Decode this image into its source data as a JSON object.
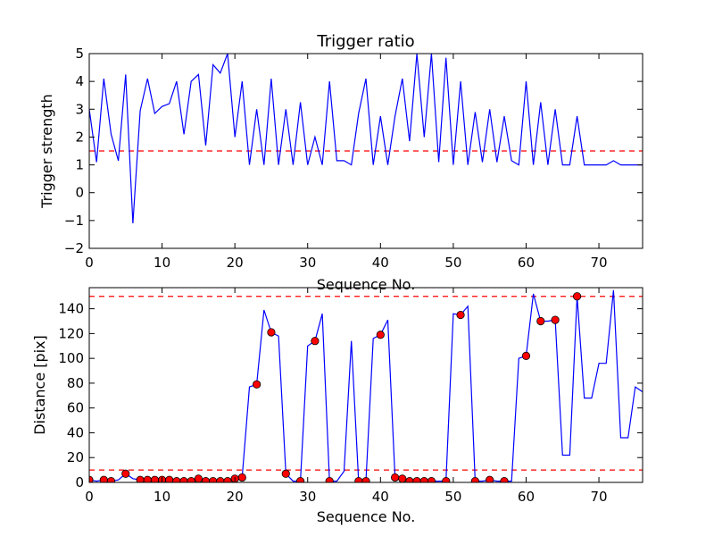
{
  "chart_data": [
    {
      "type": "line",
      "title": "Trigger ratio",
      "xlabel": "Sequence No.",
      "ylabel": "Trigger strength",
      "xlim": [
        0,
        76
      ],
      "ylim": [
        -2,
        5
      ],
      "xticks": [
        0,
        10,
        20,
        30,
        40,
        50,
        60,
        70
      ],
      "yticks": [
        -2,
        -1,
        0,
        1,
        2,
        3,
        4,
        5
      ],
      "xtick_labels": [
        "0",
        "10",
        "20",
        "30",
        "40",
        "50",
        "60",
        "70"
      ],
      "ytick_labels": [
        "−2",
        "−1",
        "0",
        "1",
        "2",
        "3",
        "4",
        "5"
      ],
      "grid": false,
      "series": [
        {
          "color": "#0000ff",
          "x": [
            0,
            1,
            2,
            3,
            4,
            5,
            6,
            7,
            8,
            9,
            10,
            11,
            12,
            13,
            14,
            15,
            16,
            17,
            18,
            19,
            20,
            21,
            22,
            23,
            24,
            25,
            26,
            27,
            28,
            29,
            30,
            31,
            32,
            33,
            34,
            35,
            36,
            37,
            38,
            39,
            40,
            41,
            42,
            43,
            44,
            45,
            46,
            47,
            48,
            49,
            50,
            51,
            52,
            53,
            54,
            55,
            56,
            57,
            58,
            59,
            60,
            61,
            62,
            63,
            64,
            65,
            66,
            67,
            68,
            69,
            70,
            71,
            72,
            73,
            74,
            75,
            76
          ],
          "y": [
            3.0,
            1.1,
            4.1,
            2.1,
            1.15,
            4.25,
            -1.1,
            2.95,
            4.1,
            2.85,
            3.1,
            3.2,
            4.0,
            2.1,
            4.0,
            4.25,
            1.7,
            4.6,
            4.3,
            5.0,
            2.0,
            4.0,
            1.0,
            3.0,
            1.0,
            4.1,
            1.0,
            3.0,
            1.0,
            3.25,
            1.0,
            2.0,
            1.0,
            4.0,
            1.15,
            1.15,
            1.0,
            2.85,
            4.1,
            1.0,
            2.75,
            1.0,
            2.75,
            4.1,
            1.85,
            5.0,
            2.0,
            5.0,
            1.1,
            4.85,
            1.0,
            4.0,
            1.0,
            2.9,
            1.1,
            3.0,
            1.1,
            2.75,
            1.15,
            1.0,
            4.0,
            1.0,
            3.25,
            1.0,
            3.0,
            1.0,
            1.0,
            2.75,
            1.0,
            1.0,
            1.0,
            1.0,
            1.15,
            1.0,
            1.0,
            1.0,
            1.0
          ]
        }
      ],
      "hlines": [
        {
          "y": 1.5,
          "color": "#ff0000",
          "style": "dashed"
        }
      ]
    },
    {
      "type": "line",
      "title": "",
      "xlabel": "Sequence No.",
      "ylabel": "Distance [pix]",
      "xlim": [
        0,
        76
      ],
      "ylim": [
        0,
        157
      ],
      "xticks": [
        0,
        10,
        20,
        30,
        40,
        50,
        60,
        70
      ],
      "yticks": [
        0,
        20,
        40,
        60,
        80,
        100,
        120,
        140
      ],
      "xtick_labels": [
        "0",
        "10",
        "20",
        "30",
        "40",
        "50",
        "60",
        "70"
      ],
      "ytick_labels": [
        "0",
        "20",
        "40",
        "60",
        "80",
        "100",
        "120",
        "140"
      ],
      "grid": false,
      "series": [
        {
          "color": "#0000ff",
          "x": [
            0,
            1,
            2,
            3,
            4,
            5,
            6,
            7,
            8,
            9,
            10,
            11,
            12,
            13,
            14,
            15,
            16,
            17,
            18,
            19,
            20,
            21,
            22,
            23,
            24,
            25,
            26,
            27,
            28,
            29,
            30,
            31,
            32,
            33,
            34,
            35,
            36,
            37,
            38,
            39,
            40,
            41,
            42,
            43,
            44,
            45,
            46,
            47,
            48,
            49,
            50,
            51,
            52,
            53,
            54,
            55,
            56,
            57,
            58,
            59,
            60,
            61,
            62,
            63,
            64,
            65,
            66,
            67,
            68,
            69,
            70,
            71,
            72,
            73,
            74,
            75,
            76
          ],
          "y": [
            2,
            1,
            2,
            1,
            2,
            7,
            3,
            2,
            2,
            2,
            2,
            2,
            1,
            1,
            1,
            3,
            1,
            1,
            1,
            1,
            3,
            4,
            77,
            79,
            139,
            121,
            118,
            7,
            1,
            1,
            110,
            114,
            136,
            1,
            1,
            9,
            114,
            1,
            1,
            116,
            119,
            131,
            4,
            3,
            1,
            1,
            1,
            1,
            1,
            1,
            136,
            135,
            142,
            1,
            1,
            2,
            1,
            1,
            1,
            100,
            102,
            152,
            130,
            130,
            131,
            22,
            22,
            150,
            68,
            68,
            96,
            96,
            155,
            36,
            36,
            77,
            73
          ]
        },
        {
          "type": "scatter",
          "color": "#ff0000",
          "x": [
            0,
            2,
            3,
            5,
            7,
            8,
            9,
            10,
            11,
            12,
            13,
            14,
            15,
            16,
            17,
            18,
            19,
            20,
            21,
            23,
            25,
            27,
            29,
            31,
            33,
            37,
            38,
            40,
            42,
            43,
            44,
            45,
            46,
            47,
            49,
            51,
            53,
            55,
            57,
            60,
            62,
            64,
            67
          ],
          "y": [
            2,
            2,
            1,
            7,
            2,
            2,
            2,
            2,
            2,
            1,
            1,
            1,
            3,
            1,
            1,
            1,
            1,
            3,
            4,
            79,
            121,
            7,
            1,
            114,
            1,
            1,
            1,
            119,
            4,
            3,
            1,
            1,
            1,
            1,
            1,
            135,
            1,
            2,
            1,
            102,
            130,
            131,
            150
          ]
        }
      ],
      "hlines": [
        {
          "y": 150,
          "color": "#ff0000",
          "style": "dashed"
        },
        {
          "y": 10,
          "color": "#ff0000",
          "style": "dashed"
        }
      ]
    }
  ]
}
